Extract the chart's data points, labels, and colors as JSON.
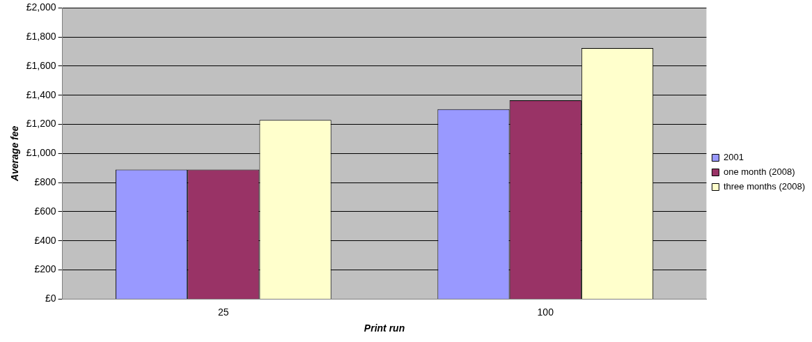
{
  "chart_data": {
    "type": "bar",
    "xlabel": "Print run",
    "ylabel": "Average fee",
    "categories": [
      "25",
      "100"
    ],
    "series": [
      {
        "name": "2001",
        "color": "#9999ff",
        "values": [
          890,
          1305
        ]
      },
      {
        "name": "one month (2008)",
        "color": "#993366",
        "values": [
          890,
          1365
        ]
      },
      {
        "name": "three months (2008)",
        "color": "#ffffcc",
        "values": [
          1230,
          1725
        ]
      }
    ],
    "ylim": [
      0,
      2000
    ],
    "yticks": [
      {
        "value": 0,
        "label": "£0"
      },
      {
        "value": 200,
        "label": "£200"
      },
      {
        "value": 400,
        "label": "£400"
      },
      {
        "value": 600,
        "label": "£600"
      },
      {
        "value": 800,
        "label": "£800"
      },
      {
        "value": 1000,
        "label": "£1,000"
      },
      {
        "value": 1200,
        "label": "£1,200"
      },
      {
        "value": 1400,
        "label": "£1,400"
      },
      {
        "value": 1600,
        "label": "£1,600"
      },
      {
        "value": 1800,
        "label": "£1,800"
      },
      {
        "value": 2000,
        "label": "£2,000"
      }
    ],
    "grid": "y",
    "legend": "right"
  }
}
